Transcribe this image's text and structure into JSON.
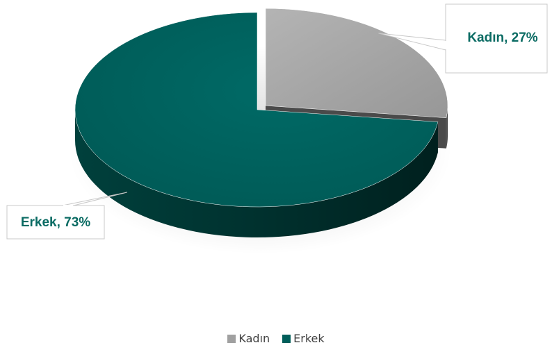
{
  "chart_data": {
    "type": "pie",
    "style": "3d-exploded",
    "categories": [
      "Kadın",
      "Erkek"
    ],
    "values": [
      27,
      73
    ],
    "unit": "%",
    "colors": [
      "#a0a0a0",
      "#005e5a"
    ],
    "data_labels": [
      "Kadın, 27%",
      "Erkek, 73%"
    ],
    "label_color": "#0a6b63",
    "legend": {
      "position": "bottom",
      "entries": [
        "Kadın",
        "Erkek"
      ]
    }
  }
}
